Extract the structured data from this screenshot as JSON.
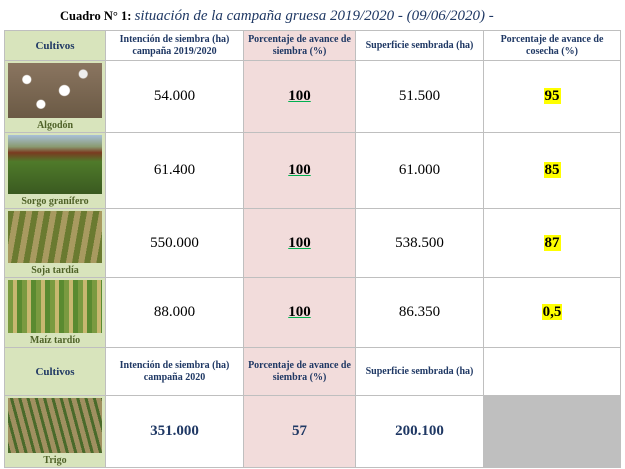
{
  "title": {
    "prefix": "Cuadro N° 1:",
    "text": "situación de la campaña gruesa 2019/2020 - (09/06/2020) -"
  },
  "table": {
    "header": [
      "Cultivos",
      "Intención de siembra (ha) campaña 2019/2020",
      "Porcentaje de avance de siembra (%)",
      "Superficie sembrada (ha)",
      "Porcentaje de avance de cosecha (%)"
    ],
    "rows": [
      [
        "Algodón",
        "54.000",
        "100",
        "51.500",
        "95"
      ],
      [
        "Sorgo granífero",
        "61.400",
        "100",
        "61.000",
        "85"
      ],
      [
        "Soja tardía",
        "550.000",
        "100",
        "538.500",
        "87"
      ],
      [
        "Maíz tardío",
        "88.000",
        "100",
        "86.350",
        "0,5"
      ]
    ]
  },
  "table2": {
    "header": [
      "Cultivos",
      "Intención de siembra (ha) campaña 2020",
      "Porcentaje de avance de siembra (%)",
      "Superficie sembrada (ha)"
    ],
    "rows": [
      [
        "Trigo",
        "351.000",
        "57",
        "200.100"
      ]
    ]
  }
}
